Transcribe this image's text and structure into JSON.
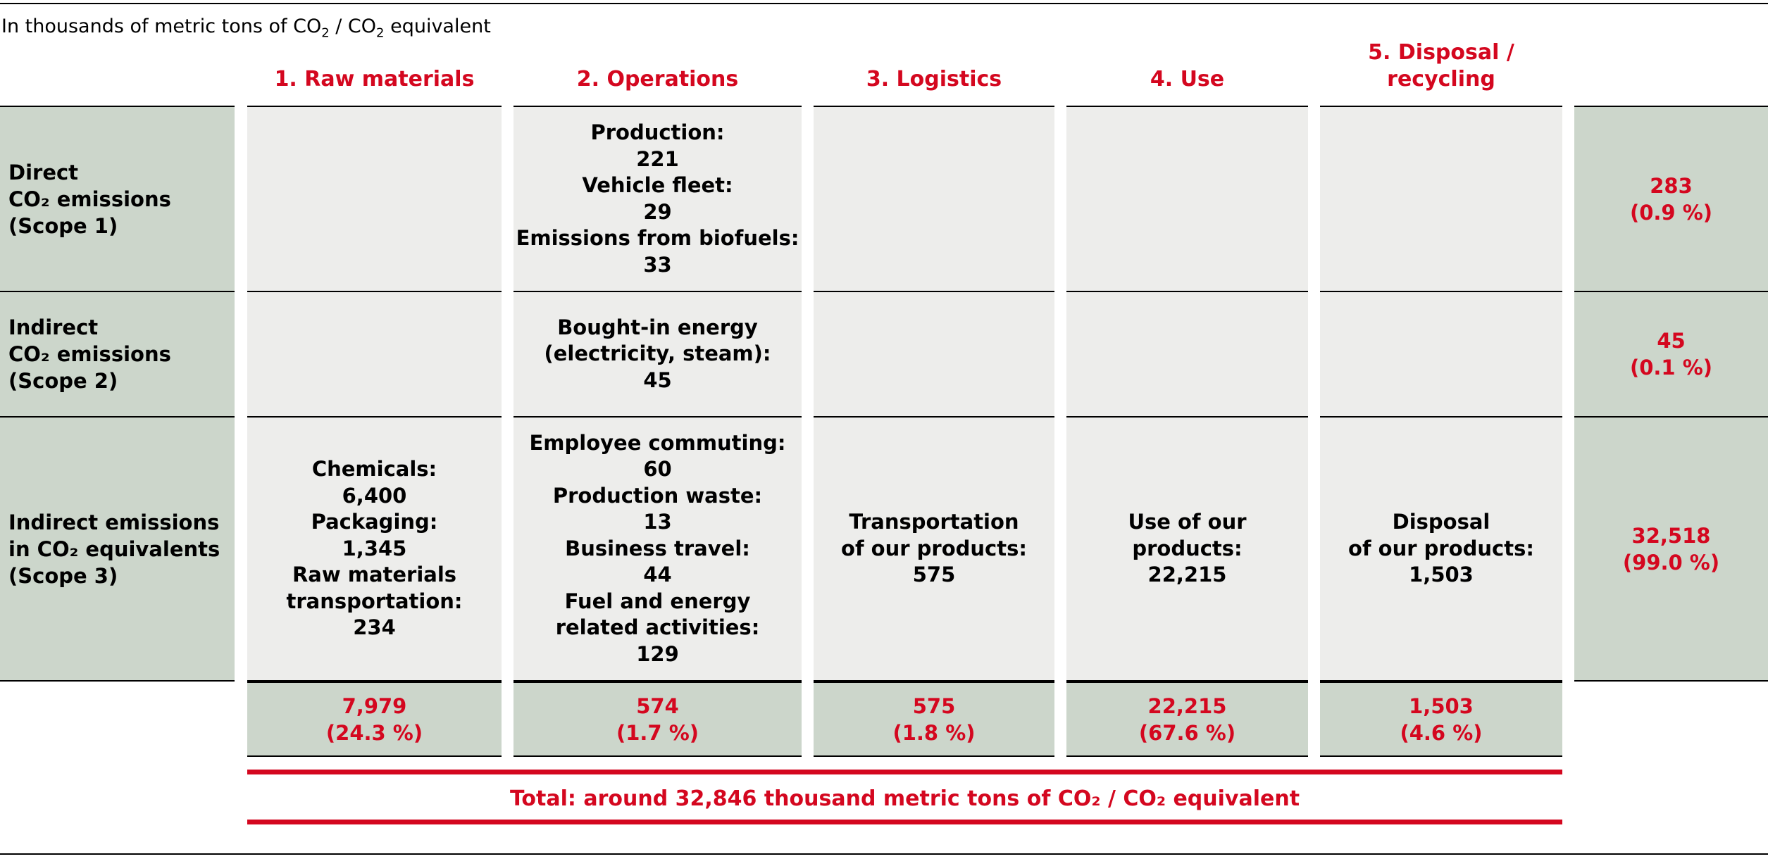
{
  "unit_label": {
    "pre": "In thousands of metric tons of CO",
    "sub1": "2",
    "mid": " / CO",
    "sub2": "2",
    "post": " equivalent"
  },
  "chart_data": {
    "type": "table",
    "columns": [
      "1. Raw materials",
      "2. Operations",
      "3. Logistics",
      "4. Use",
      "5. Disposal / recycling"
    ],
    "rows": [
      {
        "label": [
          "Direct",
          "CO₂ emissions",
          "(Scope 1)"
        ],
        "cells": [
          [],
          [
            "Production:",
            "221",
            "Vehicle fleet:",
            "29",
            "Emissions from biofuels:",
            "33"
          ],
          [],
          [],
          []
        ],
        "total": [
          "283",
          "(0.9 %)"
        ]
      },
      {
        "label": [
          "Indirect",
          "CO₂ emissions",
          "(Scope 2)"
        ],
        "cells": [
          [],
          [
            "Bought-in energy",
            "(electricity, steam):",
            "45"
          ],
          [],
          [],
          []
        ],
        "total": [
          "45",
          "(0.1 %)"
        ]
      },
      {
        "label": [
          "Indirect emissions",
          "in CO₂ equivalents",
          "(Scope 3)"
        ],
        "cells": [
          [
            "Chemicals:",
            "6,400",
            "Packaging:",
            "1,345",
            "Raw materials",
            "transportation:",
            "234"
          ],
          [
            "Employee commuting:",
            "60",
            "Production waste:",
            "13",
            "Business travel:",
            "44",
            "Fuel and energy",
            "related activities:",
            "129"
          ],
          [
            "Transportation",
            "of our products:",
            "575"
          ],
          [
            "Use of our",
            "products:",
            "22,215"
          ],
          [
            "Disposal",
            "of our products:",
            "1,503"
          ]
        ],
        "total": [
          "32,518",
          "(99.0 %)"
        ]
      }
    ],
    "column_totals": [
      [
        "7,979",
        "(24.3 %)"
      ],
      [
        "574",
        "(1.7 %)"
      ],
      [
        "575",
        "(1.8 %)"
      ],
      [
        "22,215",
        "(67.6 %)"
      ],
      [
        "1,503",
        "(4.6 %)"
      ]
    ],
    "grand_total": "Total: around 32,846 thousand metric tons of CO₂ / CO₂ equivalent"
  },
  "colors": {
    "accent_red": "#d4071f",
    "green_fill": "#ccd6cb",
    "gray_fill": "#ededeb"
  }
}
